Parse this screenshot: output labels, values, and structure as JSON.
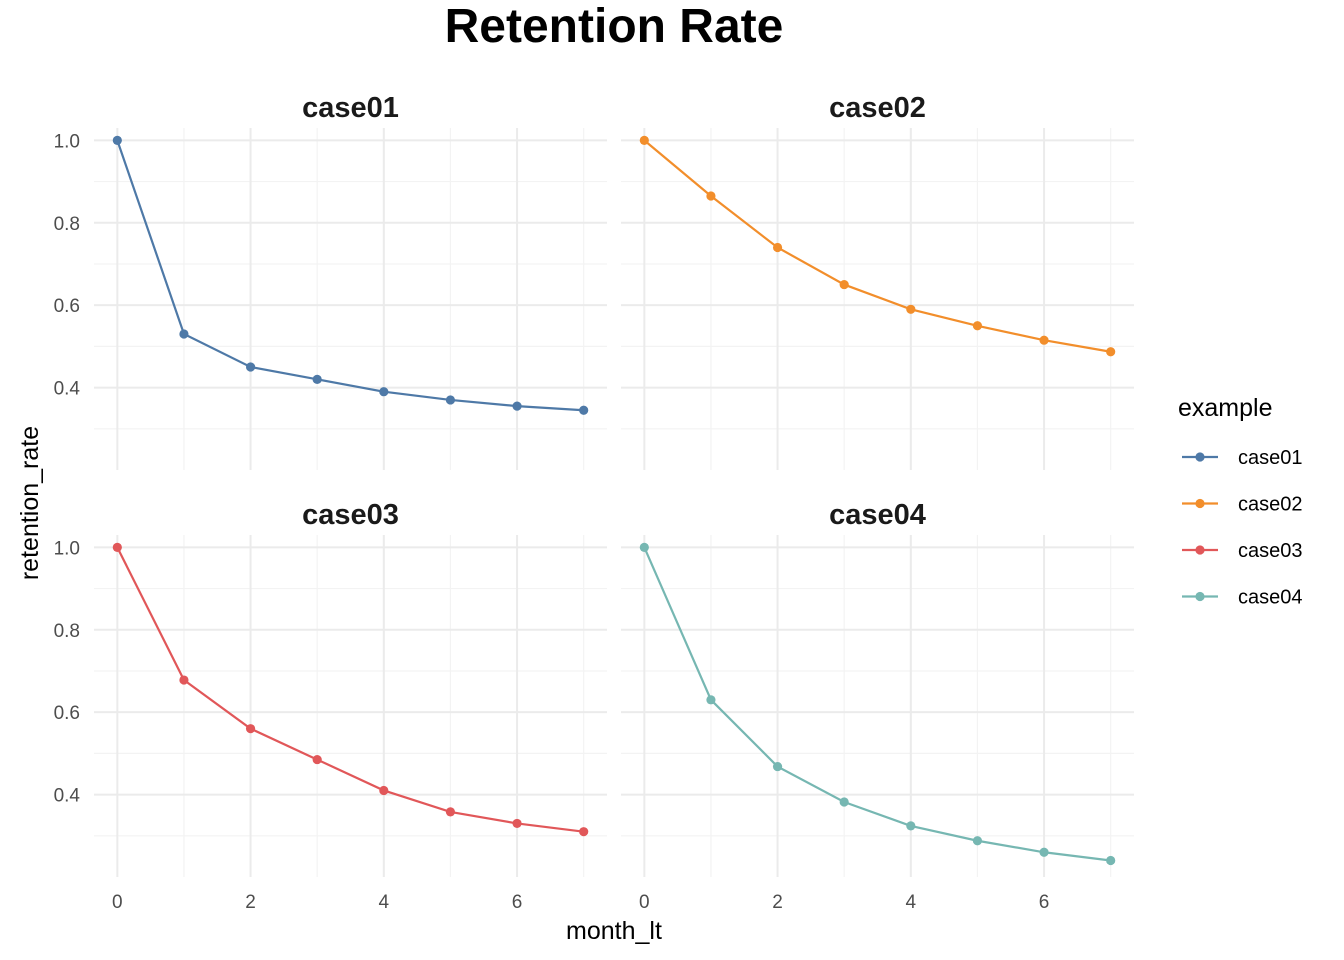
{
  "chart_data": {
    "type": "line",
    "title": "Retention Rate",
    "xlabel": "month_lt",
    "ylabel": "retention_rate",
    "x": [
      0,
      1,
      2,
      3,
      4,
      5,
      6,
      7
    ],
    "x_ticks": [
      0,
      2,
      4,
      6
    ],
    "y_ticks": [
      0.4,
      0.6,
      0.8,
      1.0
    ],
    "y_tick_labels": [
      "0.4",
      "0.6",
      "0.8",
      "1.0"
    ],
    "ylim_top_row": [
      0.2,
      1.03
    ],
    "ylim_bottom_row": [
      0.2,
      1.03
    ],
    "grid": true,
    "facets": [
      "case01",
      "case02",
      "case03",
      "case04"
    ],
    "legend": {
      "title": "example",
      "position": "right"
    },
    "series": [
      {
        "name": "case01",
        "color": "#4e79a7",
        "values": [
          1.0,
          0.53,
          0.45,
          0.42,
          0.39,
          0.37,
          0.355,
          0.345
        ]
      },
      {
        "name": "case02",
        "color": "#f28e2b",
        "values": [
          1.0,
          0.865,
          0.74,
          0.65,
          0.59,
          0.55,
          0.515,
          0.487
        ]
      },
      {
        "name": "case03",
        "color": "#e15759",
        "values": [
          1.0,
          0.678,
          0.56,
          0.485,
          0.41,
          0.358,
          0.33,
          0.31
        ]
      },
      {
        "name": "case04",
        "color": "#76b7b2",
        "values": [
          1.0,
          0.63,
          0.468,
          0.382,
          0.324,
          0.288,
          0.26,
          0.24
        ]
      }
    ]
  }
}
